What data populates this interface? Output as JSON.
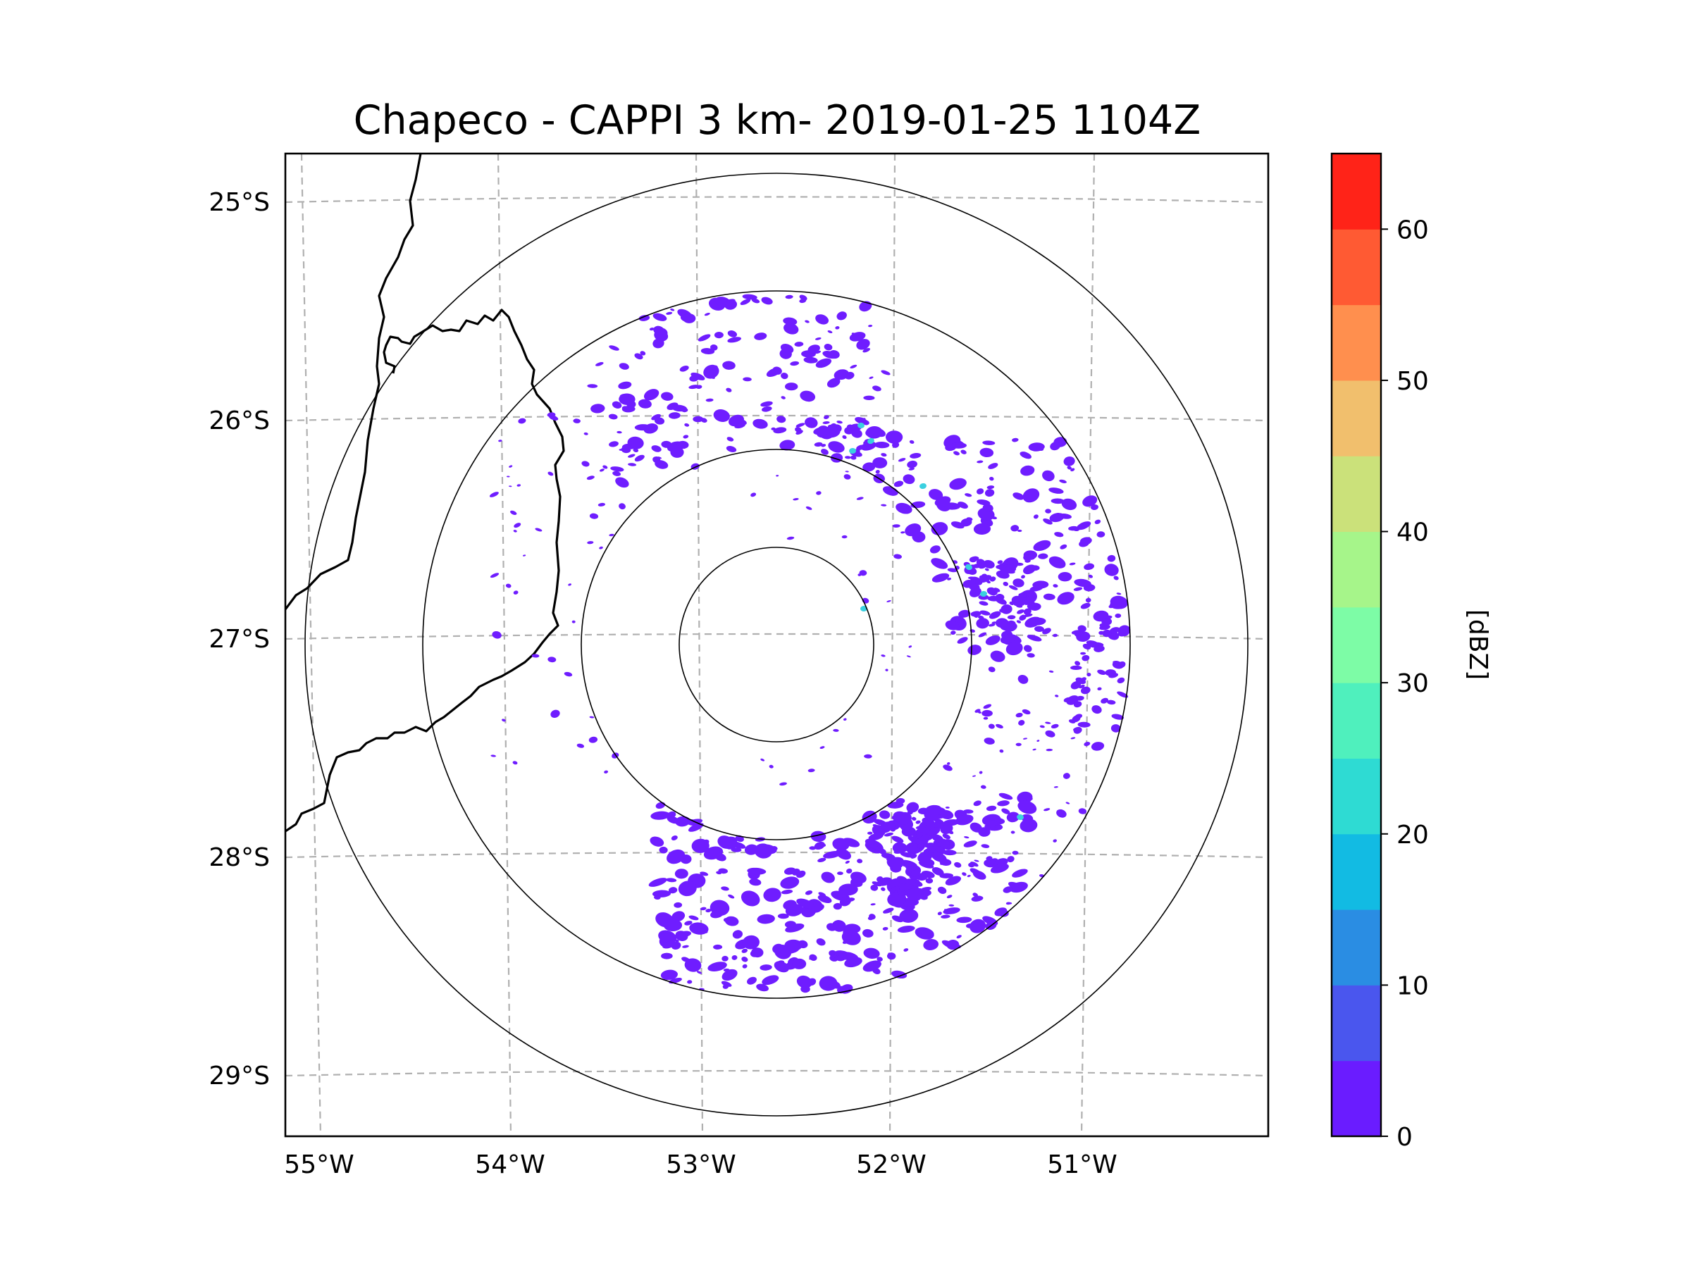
{
  "title": "Chapeco - CAPPI 3 km- 2019-01-25 1104Z",
  "map": {
    "radar_site": "Chapeco",
    "product": "CAPPI 3 km",
    "datetime": "2019-01-25 1104Z",
    "lat_ticks": [
      "25°S",
      "26°S",
      "27°S",
      "28°S",
      "29°S"
    ],
    "lon_ticks": [
      "55°W",
      "54°W",
      "53°W",
      "52°W",
      "51°W"
    ],
    "range_rings": 4,
    "gridline_color": "#b0b0b0",
    "border_color": "#000000",
    "echo_color": "#6f1dff",
    "echo_highlight_color": "#3ad0e0"
  },
  "colorbar": {
    "label": "[dBZ]",
    "ticks": [
      "0",
      "10",
      "20",
      "30",
      "40",
      "50",
      "60"
    ],
    "range": [
      0,
      65
    ],
    "step": 5,
    "colors": [
      "#6a1cff",
      "#4a56ee",
      "#2a8de3",
      "#12bbe3",
      "#2edbd3",
      "#4ff0bd",
      "#7dfca6",
      "#a6f58a",
      "#cbe17a",
      "#f1bf6d",
      "#ff8f4e",
      "#ff5a33",
      "#ff2318"
    ]
  }
}
